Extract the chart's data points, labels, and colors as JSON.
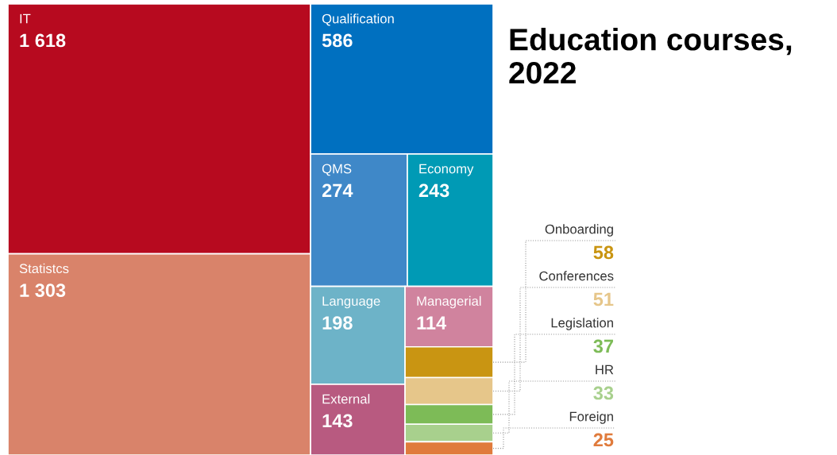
{
  "chart_data": {
    "type": "other",
    "title": "Education courses, 2022",
    "categories": [
      "IT",
      "Statistcs",
      "Qualification",
      "QMS",
      "Economy",
      "Language",
      "External",
      "Managerial",
      "Onboarding",
      "Conferences",
      "Legislation",
      "HR",
      "Foreign"
    ],
    "values": [
      1618,
      1303,
      586,
      274,
      243,
      198,
      143,
      114,
      58,
      51,
      37,
      33,
      25
    ],
    "value_labels": [
      "1 618",
      "1 303",
      "586",
      "274",
      "243",
      "198",
      "143",
      "114",
      "58",
      "51",
      "37",
      "33",
      "25"
    ],
    "colors": [
      "#b70a1f",
      "#d9836a",
      "#0070c0",
      "#3f88c8",
      "#009ab5",
      "#6db3c8",
      "#b85a80",
      "#d0839e",
      "#c99512",
      "#e6c68a",
      "#7dbb57",
      "#a8d08d",
      "#e07b3c"
    ]
  }
}
